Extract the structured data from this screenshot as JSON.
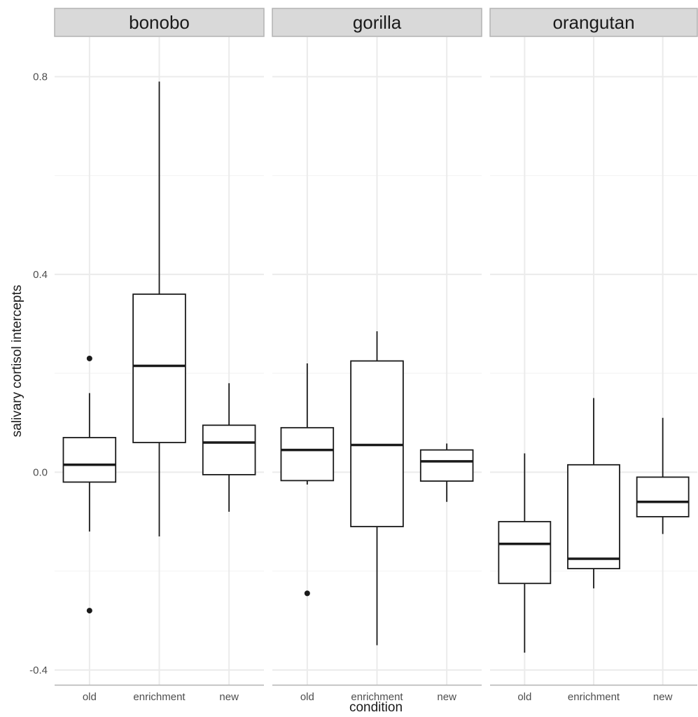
{
  "chart_data": {
    "type": "boxplot",
    "xlabel": "condition",
    "ylabel": "salivary cortisol intercepts",
    "categories": [
      "old",
      "enrichment",
      "new"
    ],
    "ylim": [
      -0.43,
      0.88
    ],
    "yticks": [
      -0.4,
      0.0,
      0.4,
      0.8
    ],
    "ytick_labels": [
      "-0.4",
      "0.0",
      "0.4",
      "0.8"
    ],
    "panels": [
      {
        "name": "bonobo",
        "boxes": [
          {
            "category": "old",
            "whisker_low": -0.12,
            "q1": -0.02,
            "median": 0.015,
            "q3": 0.07,
            "whisker_high": 0.16,
            "outliers": [
              0.23,
              -0.28
            ]
          },
          {
            "category": "enrichment",
            "whisker_low": -0.13,
            "q1": 0.06,
            "median": 0.215,
            "q3": 0.36,
            "whisker_high": 0.79,
            "outliers": []
          },
          {
            "category": "new",
            "whisker_low": -0.08,
            "q1": -0.005,
            "median": 0.06,
            "q3": 0.095,
            "whisker_high": 0.18,
            "outliers": []
          }
        ]
      },
      {
        "name": "gorilla",
        "boxes": [
          {
            "category": "old",
            "whisker_low": -0.025,
            "q1": -0.017,
            "median": 0.045,
            "q3": 0.09,
            "whisker_high": 0.22,
            "outliers": [
              -0.245
            ]
          },
          {
            "category": "enrichment",
            "whisker_low": -0.35,
            "q1": -0.11,
            "median": 0.055,
            "q3": 0.225,
            "whisker_high": 0.285,
            "outliers": []
          },
          {
            "category": "new",
            "whisker_low": -0.06,
            "q1": -0.018,
            "median": 0.022,
            "q3": 0.045,
            "whisker_high": 0.058,
            "outliers": []
          }
        ]
      },
      {
        "name": "orangutan",
        "boxes": [
          {
            "category": "old",
            "whisker_low": -0.365,
            "q1": -0.225,
            "median": -0.145,
            "q3": -0.1,
            "whisker_high": 0.038,
            "outliers": []
          },
          {
            "category": "enrichment",
            "whisker_low": -0.235,
            "q1": -0.195,
            "median": -0.175,
            "q3": 0.015,
            "whisker_high": 0.15,
            "outliers": []
          },
          {
            "category": "new",
            "whisker_low": -0.125,
            "q1": -0.09,
            "median": -0.06,
            "q3": -0.01,
            "whisker_high": 0.11,
            "outliers": []
          }
        ]
      }
    ]
  }
}
